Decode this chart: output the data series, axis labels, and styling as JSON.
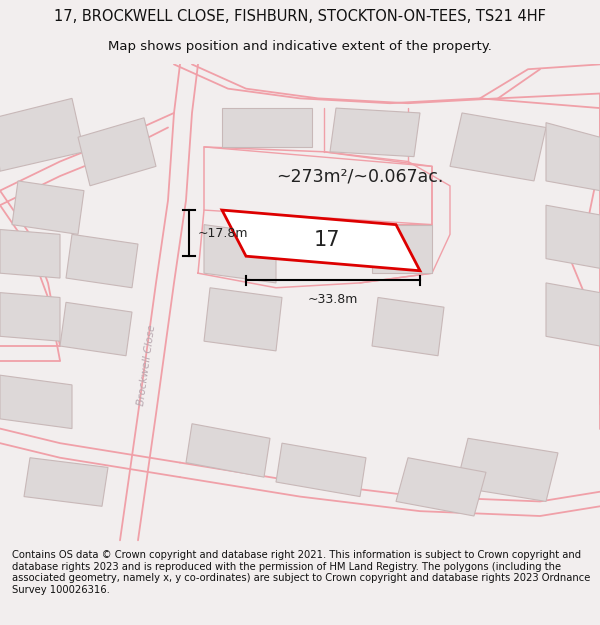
{
  "title_line1": "17, BROCKWELL CLOSE, FISHBURN, STOCKTON-ON-TEES, TS21 4HF",
  "title_line2": "Map shows position and indicative extent of the property.",
  "footer_text": "Contains OS data © Crown copyright and database right 2021. This information is subject to Crown copyright and database rights 2023 and is reproduced with the permission of HM Land Registry. The polygons (including the associated geometry, namely x, y co-ordinates) are subject to Crown copyright and database rights 2023 Ordnance Survey 100026316.",
  "bg_color": "#f2eeee",
  "map_bg": "#ffffff",
  "road_color": "#f0a0a8",
  "building_fill": "#ddd8d8",
  "building_edge": "#c8b8b8",
  "highlight_color": "#dd0000",
  "street_label": "Brockwell Close",
  "area_label": "~273m²/~0.067ac.",
  "number_label": "17",
  "width_label": "~33.8m",
  "height_label": "~17.8m",
  "title_fontsize": 10.5,
  "subtitle_fontsize": 9.5,
  "footer_fontsize": 7.2
}
